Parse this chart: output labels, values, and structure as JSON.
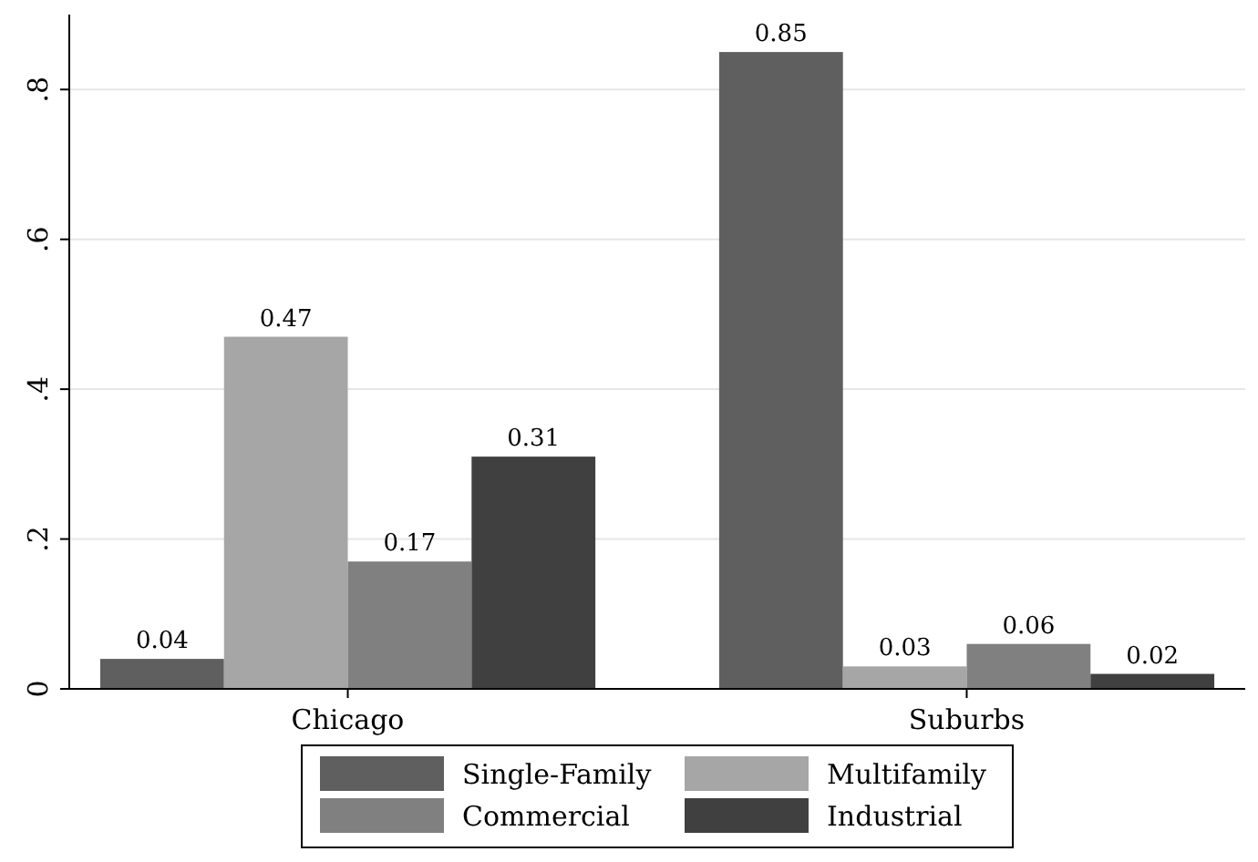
{
  "chart_data": {
    "type": "bar",
    "categories": [
      "Chicago",
      "Suburbs"
    ],
    "series": [
      {
        "name": "Single-Family",
        "color": "#5f5f5f",
        "values": [
          0.04,
          0.85
        ]
      },
      {
        "name": "Multifamily",
        "color": "#a6a6a6",
        "values": [
          0.47,
          0.03
        ]
      },
      {
        "name": "Commercial",
        "color": "#808080",
        "values": [
          0.17,
          0.06
        ]
      },
      {
        "name": "Industrial",
        "color": "#404040",
        "values": [
          0.31,
          0.02
        ]
      }
    ],
    "ylim": [
      0,
      0.9
    ],
    "yticks": [
      0,
      {
        "value": 0.2,
        "label": ".2"
      },
      {
        "value": 0.4,
        "label": ".4"
      },
      {
        "value": 0.6,
        "label": ".6"
      },
      {
        "value": 0.8,
        "label": ".8"
      }
    ],
    "grid": "y",
    "legend": "bottom",
    "data_labels": true
  }
}
